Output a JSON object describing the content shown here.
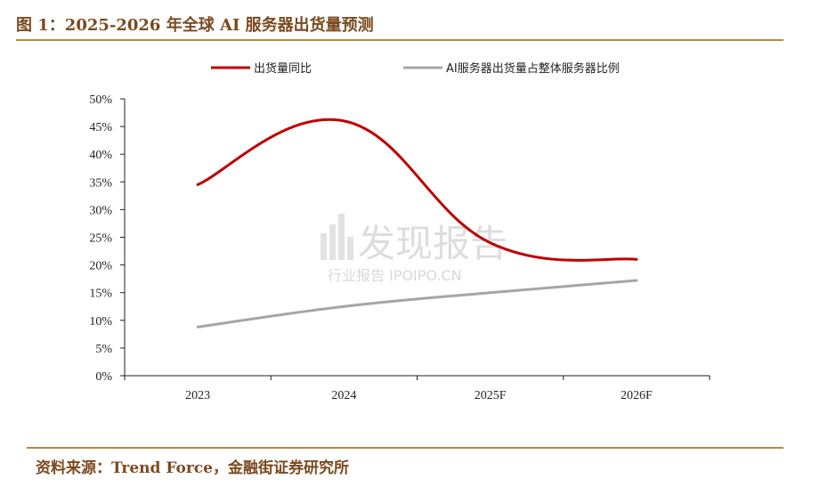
{
  "figure": {
    "title": "图 1：2025-2026 年全球 AI 服务器出货量预测",
    "source": "资料来源：Trend Force，金融街证券研究所"
  },
  "watermark": {
    "brand": "发现报告",
    "subtitle": "行业报告 IPOIPO.CN"
  },
  "colors": {
    "yoy": "#c00000",
    "share": "#a6a6a6",
    "rule": "#b88a3e",
    "title": "#7a4a1e"
  },
  "chart_data": {
    "type": "line",
    "categories": [
      "2023",
      "2024",
      "2025F",
      "2026F"
    ],
    "ylim": [
      0,
      50
    ],
    "yticks": [
      "0%",
      "5%",
      "10%",
      "15%",
      "20%",
      "25%",
      "30%",
      "35%",
      "40%",
      "45%",
      "50%"
    ],
    "legend_position": "top",
    "series": [
      {
        "name": "出货量同比",
        "values": [
          34.5,
          46.0,
          24.0,
          21.0
        ],
        "color": "#c00000"
      },
      {
        "name": "AI服务器出货量占整体服务器比例",
        "values": [
          8.8,
          12.5,
          15.0,
          17.2
        ],
        "color": "#a6a6a6"
      }
    ]
  }
}
